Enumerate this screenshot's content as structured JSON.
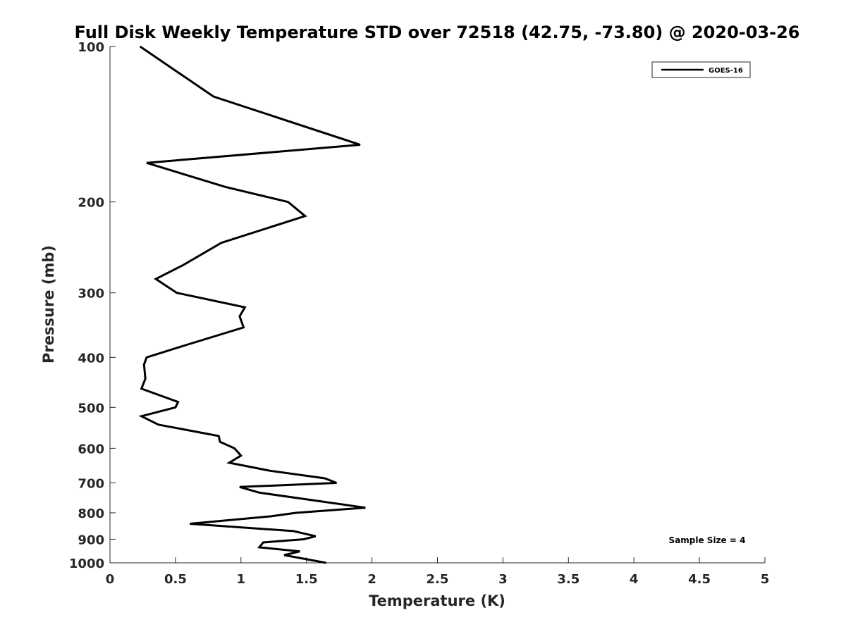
{
  "chart_data": {
    "type": "line",
    "title": "Full Disk Weekly Temperature STD over 72518 (42.75, -73.80) @ 2020-03-26",
    "xlabel": "Temperature (K)",
    "ylabel": "Pressure (mb)",
    "xlim": [
      0,
      5
    ],
    "ylim": [
      100,
      1000
    ],
    "yscale": "log",
    "y_reversed": true,
    "grid": false,
    "x_ticks": [
      0,
      0.5,
      1,
      1.5,
      2,
      2.5,
      3,
      3.5,
      4,
      4.5,
      5
    ],
    "x_tick_labels": [
      "0",
      "0.5",
      "1",
      "1.5",
      "2",
      "2.5",
      "3",
      "3.5",
      "4",
      "4.5",
      "5"
    ],
    "y_ticks": [
      100,
      200,
      300,
      400,
      500,
      600,
      700,
      800,
      900,
      1000
    ],
    "y_tick_labels": [
      "100",
      "200",
      "300",
      "400",
      "500",
      "600",
      "700",
      "800",
      "900",
      "1000"
    ],
    "legend_position": "top-right",
    "annotation": "Sample Size = 4",
    "series": [
      {
        "name": "GOES-16",
        "color": "#000000",
        "points": [
          [
            0.23,
            100
          ],
          [
            0.79,
            125
          ],
          [
            1.91,
            155
          ],
          [
            0.28,
            168
          ],
          [
            0.88,
            187
          ],
          [
            1.36,
            200
          ],
          [
            1.49,
            213
          ],
          [
            0.85,
            240
          ],
          [
            0.56,
            265
          ],
          [
            0.35,
            282
          ],
          [
            0.51,
            300
          ],
          [
            1.03,
            320
          ],
          [
            0.99,
            333
          ],
          [
            1.02,
            350
          ],
          [
            0.56,
            380
          ],
          [
            0.28,
            400
          ],
          [
            0.26,
            413
          ],
          [
            0.27,
            440
          ],
          [
            0.24,
            460
          ],
          [
            0.52,
            488
          ],
          [
            0.5,
            500
          ],
          [
            0.24,
            520
          ],
          [
            0.37,
            540
          ],
          [
            0.83,
            568
          ],
          [
            0.84,
            583
          ],
          [
            0.95,
            600
          ],
          [
            1.0,
            620
          ],
          [
            0.91,
            640
          ],
          [
            1.22,
            663
          ],
          [
            1.64,
            686
          ],
          [
            1.73,
            700
          ],
          [
            0.99,
            713
          ],
          [
            1.14,
            731
          ],
          [
            1.95,
            782
          ],
          [
            1.42,
            800
          ],
          [
            1.22,
            813
          ],
          [
            0.61,
            840
          ],
          [
            1.4,
            868
          ],
          [
            1.57,
            888
          ],
          [
            1.48,
            900
          ],
          [
            1.17,
            913
          ],
          [
            1.14,
            933
          ],
          [
            1.45,
            950
          ],
          [
            1.33,
            966
          ],
          [
            1.65,
            1000
          ]
        ]
      }
    ]
  }
}
